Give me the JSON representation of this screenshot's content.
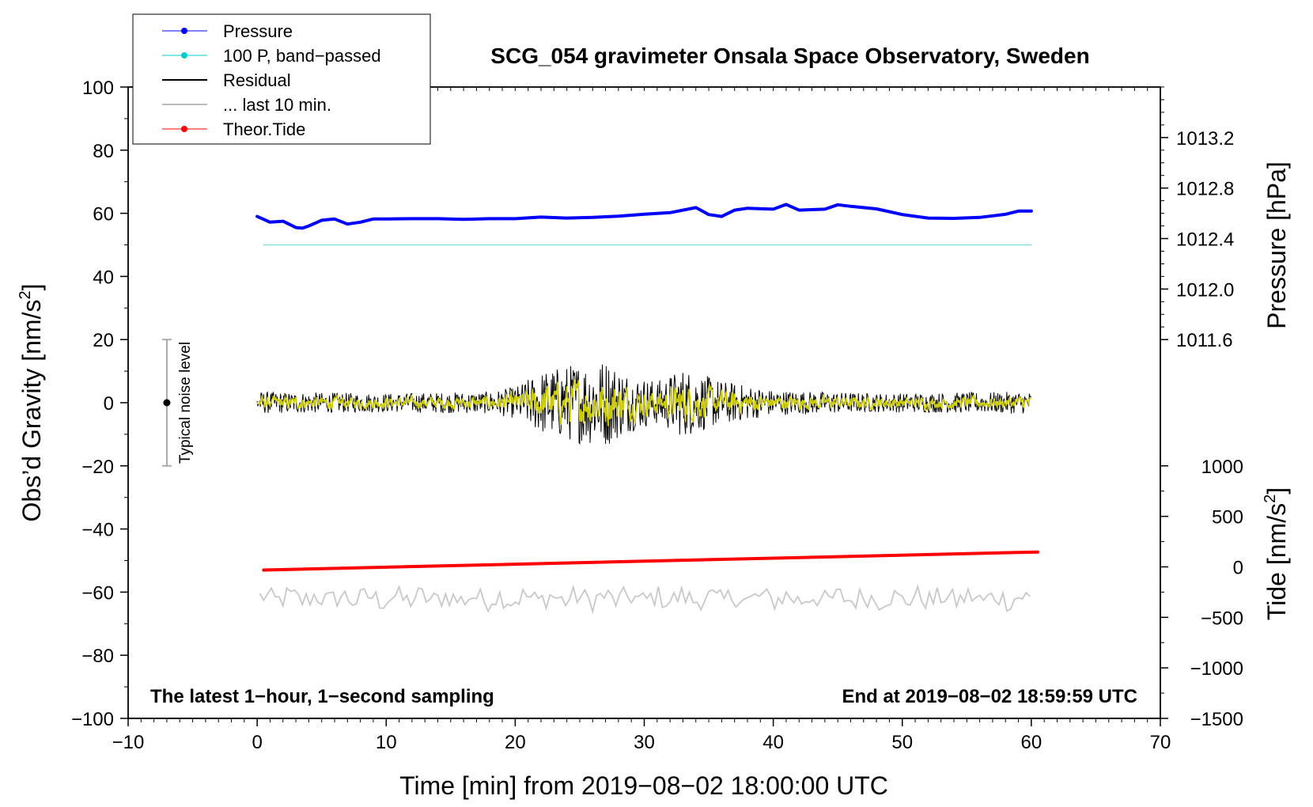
{
  "chart_data": {
    "type": "line",
    "title": "SCG_054 gravimeter Onsala Space Observatory, Sweden",
    "xlabel": "Time [min] from 2019−08−02 18:00:00 UTC",
    "ylabel": "Obs’d Gravity [nm/s²]",
    "ylabel_main": "Obs’d Gravity [nm/s",
    "ylabel_sup": "2",
    "ylabel_close": "]",
    "y2label": "Pressure [hPa]",
    "y3label": "Tide [nm/s²]",
    "y3label_main": "Tide [nm/s",
    "y3label_sup": "2",
    "y3label_close": "]",
    "xlim": [
      -10,
      70
    ],
    "ylim": [
      -100,
      100
    ],
    "x_ticks": [
      -10,
      0,
      10,
      20,
      30,
      40,
      50,
      60,
      70
    ],
    "x_tick_labels": [
      "−10",
      "0",
      "10",
      "20",
      "30",
      "40",
      "50",
      "60",
      "70"
    ],
    "y_ticks": [
      -100,
      -80,
      -60,
      -40,
      -20,
      0,
      20,
      40,
      60,
      80,
      100
    ],
    "y_tick_labels": [
      "−100",
      "−80",
      "−60",
      "−40",
      "−20",
      "0",
      "20",
      "40",
      "60",
      "80",
      "100"
    ],
    "pressure_axis": {
      "ticks": [
        1011.6,
        1012.0,
        1012.4,
        1012.8,
        1013.2
      ],
      "tick_labels": [
        "1011.6",
        "1012.0",
        "1012.4",
        "1012.8",
        "1013.2"
      ],
      "map_hpa": [
        1011.6,
        1013.2
      ],
      "map_gravity": [
        20,
        84
      ]
    },
    "tide_axis": {
      "ticks": [
        -1500,
        -1000,
        -500,
        0,
        500,
        1000
      ],
      "tick_labels": [
        "−1500",
        "−1000",
        "−500",
        "0",
        "500",
        "1000"
      ],
      "map_tide": [
        -1500,
        1000
      ],
      "map_gravity": [
        -100,
        -20
      ]
    },
    "legend": [
      {
        "label": "Pressure",
        "color": "#0000ff",
        "marker": true
      },
      {
        "label": "100 P, band−passed",
        "color": "#00cccc",
        "marker": true
      },
      {
        "label": "Residual",
        "color": "#000000",
        "marker": false
      },
      {
        "label": "... last 10 min.",
        "color": "#bbbbbb",
        "marker": false
      },
      {
        "label": "Theor.Tide",
        "color": "#ff0000",
        "marker": true
      }
    ],
    "annotations": {
      "bottom_left": "The latest 1−hour, 1−second sampling",
      "bottom_right": "End at 2019−08−02 18:59:59 UTC",
      "noise_label": "Typical noise level"
    },
    "noise_bar": {
      "x": -7,
      "center": 0,
      "low": -20,
      "high": 20
    },
    "series": [
      {
        "name": "Pressure",
        "color": "#0000ff",
        "axis": "gravity",
        "x": [
          0,
          1,
          2,
          3,
          3.5,
          4,
          5,
          6,
          7,
          8,
          9,
          10,
          12,
          14,
          16,
          18,
          20,
          22,
          24,
          26,
          28,
          30,
          32,
          34,
          35,
          36,
          37,
          38,
          40,
          41,
          42,
          44,
          45,
          46,
          48,
          50,
          52,
          54,
          56,
          58,
          59,
          60
        ],
        "values": [
          59,
          57.2,
          57.5,
          55.5,
          55.3,
          56,
          57.8,
          58.2,
          56.6,
          57.2,
          58.2,
          58.2,
          58.3,
          58.3,
          58.1,
          58.3,
          58.3,
          58.8,
          58.5,
          58.7,
          59.1,
          59.7,
          60.2,
          61.8,
          59.6,
          59.0,
          61.0,
          61.6,
          61.3,
          62.8,
          61.0,
          61.3,
          62.7,
          62.2,
          61.4,
          59.6,
          58.5,
          58.4,
          58.7,
          59.7,
          60.7,
          60.7
        ]
      },
      {
        "name": "100 P, band−passed",
        "color": "#88dddd",
        "axis": "gravity",
        "x": [
          0.5,
          60
        ],
        "values": [
          50,
          50
        ]
      },
      {
        "name": "Theor.Tide",
        "color": "#ff0000",
        "axis": "gravity",
        "x": [
          0.5,
          60.5
        ],
        "values": [
          -53,
          -47.3
        ]
      }
    ],
    "residual": {
      "x_start": 0,
      "x_end": 60,
      "center": 0,
      "envelope": [
        {
          "x": 0,
          "amp": 3.5
        },
        {
          "x": 10,
          "amp": 3
        },
        {
          "x": 18,
          "amp": 3.5
        },
        {
          "x": 20,
          "amp": 5
        },
        {
          "x": 22,
          "amp": 10
        },
        {
          "x": 25,
          "amp": 13
        },
        {
          "x": 27,
          "amp": 14
        },
        {
          "x": 29,
          "amp": 9
        },
        {
          "x": 31,
          "amp": 7
        },
        {
          "x": 33,
          "amp": 11
        },
        {
          "x": 36,
          "amp": 7
        },
        {
          "x": 40,
          "amp": 4
        },
        {
          "x": 48,
          "amp": 3
        },
        {
          "x": 60,
          "amp": 3.5
        }
      ],
      "smoothed_color": "#cccc00"
    },
    "last_10_min": {
      "x_start": 0.2,
      "x_end": 60,
      "center": -62,
      "amp": 3.5,
      "color": "#c8c8c8"
    }
  }
}
